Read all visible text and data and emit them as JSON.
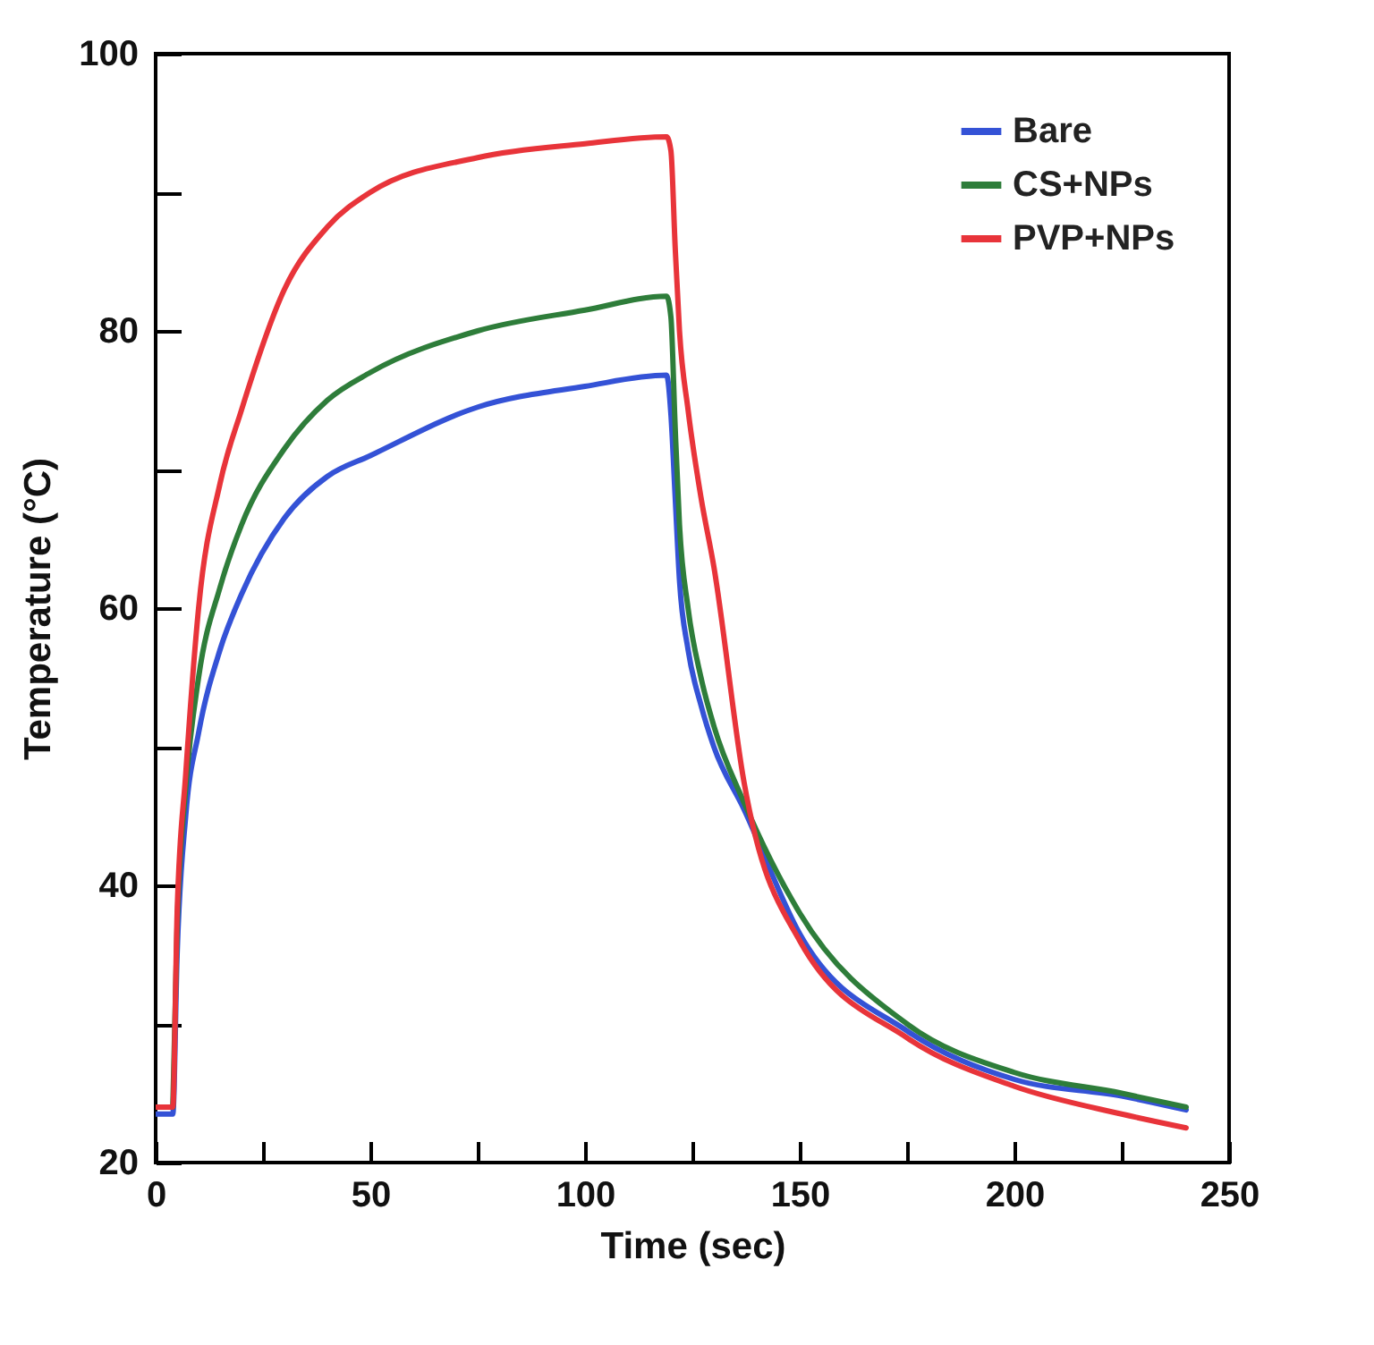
{
  "chart_data": {
    "type": "line",
    "xlabel": "Time (sec)",
    "ylabel": "Temperature (°C)",
    "xlim": [
      0,
      250
    ],
    "ylim": [
      20,
      100
    ],
    "xticks": [
      0,
      {
        "value": 25,
        "label": null
      },
      50,
      {
        "value": 75,
        "label": null
      },
      100,
      {
        "value": 125,
        "label": null
      },
      150,
      {
        "value": 175,
        "label": null
      },
      200,
      {
        "value": 225,
        "label": null
      },
      250
    ],
    "yticks": [
      20,
      {
        "value": 30,
        "label": null
      },
      40,
      {
        "value": 50,
        "label": null
      },
      60,
      {
        "value": 70,
        "label": null
      },
      80,
      {
        "value": 90,
        "label": null
      },
      100
    ],
    "grid": false,
    "legend": "top right",
    "line_style": "solid",
    "marker": "none",
    "x": [
      0,
      4,
      5,
      7,
      10,
      15,
      20,
      30,
      40,
      50,
      75,
      100,
      119,
      120,
      121,
      122,
      124,
      127,
      130,
      137,
      150,
      175,
      200,
      225,
      240
    ],
    "series": [
      {
        "name": "Bare",
        "color": "#3452d6",
        "values": [
          23.5,
          23.5,
          35,
          45,
          51,
          57,
          61,
          66.5,
          69.5,
          71,
          74.5,
          76,
          76.8,
          74,
          68,
          62,
          57,
          53,
          50,
          45.5,
          36.5,
          29.5,
          26,
          24.8,
          23.8
        ]
      },
      {
        "name": "CS+NPs",
        "color": "#2e7d3a",
        "values": [
          null,
          24,
          37,
          47,
          55,
          61.5,
          66,
          71.5,
          75,
          77,
          80,
          81.5,
          82.5,
          81,
          73,
          66,
          60,
          55,
          51.5,
          46,
          38,
          30,
          26.5,
          25,
          24
        ]
      },
      {
        "name": "PVP+NPs",
        "color": "#e8343a",
        "values": [
          24,
          24,
          38,
          48,
          60,
          69,
          74.3,
          83,
          87.5,
          90,
          92.5,
          93.5,
          94,
          93,
          86,
          80,
          74.3,
          68,
          63,
          47.5,
          36,
          29,
          25.5,
          23.5,
          22.5
        ]
      }
    ]
  }
}
